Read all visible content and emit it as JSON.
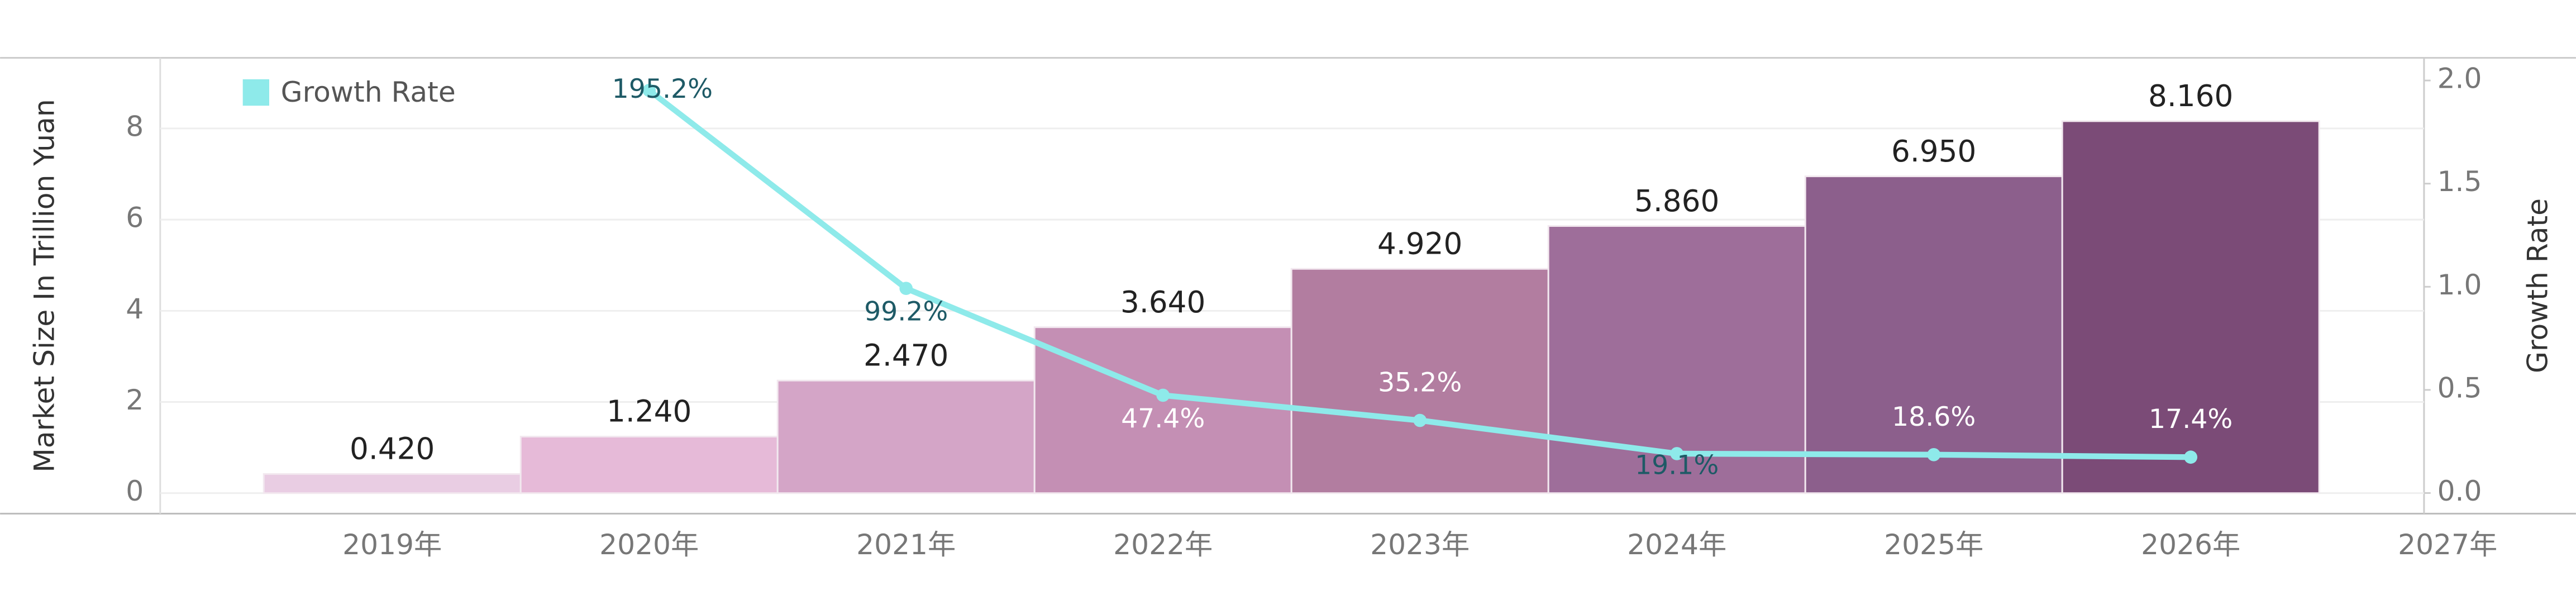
{
  "chart_data": {
    "type": "bar_line",
    "y_label": "Market Size In Trillion Yuan",
    "y2_label": "Growth Rate",
    "categories": [
      "2019年",
      "2020年",
      "2021年",
      "2022年",
      "2023年",
      "2024年",
      "2025年",
      "2026年",
      "2027年"
    ],
    "series": [
      {
        "name": "Market Size",
        "type": "bar",
        "colors": [
          "#e9cde3",
          "#e6bad8",
          "#d4a5c7",
          "#c48fb4",
          "#b27da0",
          "#9e6e9a",
          "#8c5f8c",
          "#7b4b77"
        ],
        "values": [
          0.42,
          1.24,
          2.47,
          3.64,
          4.92,
          5.86,
          6.95,
          8.16,
          null
        ],
        "value_labels": [
          "0.420",
          "1.240",
          "2.470",
          "3.640",
          "4.920",
          "5.860",
          "6.950",
          "8.160",
          null
        ]
      },
      {
        "name": "Growth Rate",
        "type": "line",
        "axis": "y2",
        "color": "#8eeaea",
        "values": [
          null,
          1.952,
          0.992,
          0.474,
          0.352,
          0.191,
          0.186,
          0.174,
          null
        ],
        "value_labels": [
          null,
          "195.2%",
          "99.2%",
          "47.4%",
          "35.2%",
          "19.1%",
          "18.6%",
          "17.4%",
          null
        ]
      }
    ],
    "ylim": [
      -0.45,
      9.55
    ],
    "yticks": [
      0,
      2,
      4,
      6,
      8
    ],
    "y2lim": [
      -0.1,
      2.11
    ],
    "y2ticks": [
      {
        "value": 0,
        "label": "0.0"
      },
      {
        "value": 0.5,
        "label": "0.5"
      },
      {
        "value": 1,
        "label": "1.0"
      },
      {
        "value": 1.5,
        "label": "1.5"
      },
      {
        "value": 2,
        "label": "2.0"
      }
    ],
    "grid": true,
    "legend": "top-left"
  }
}
